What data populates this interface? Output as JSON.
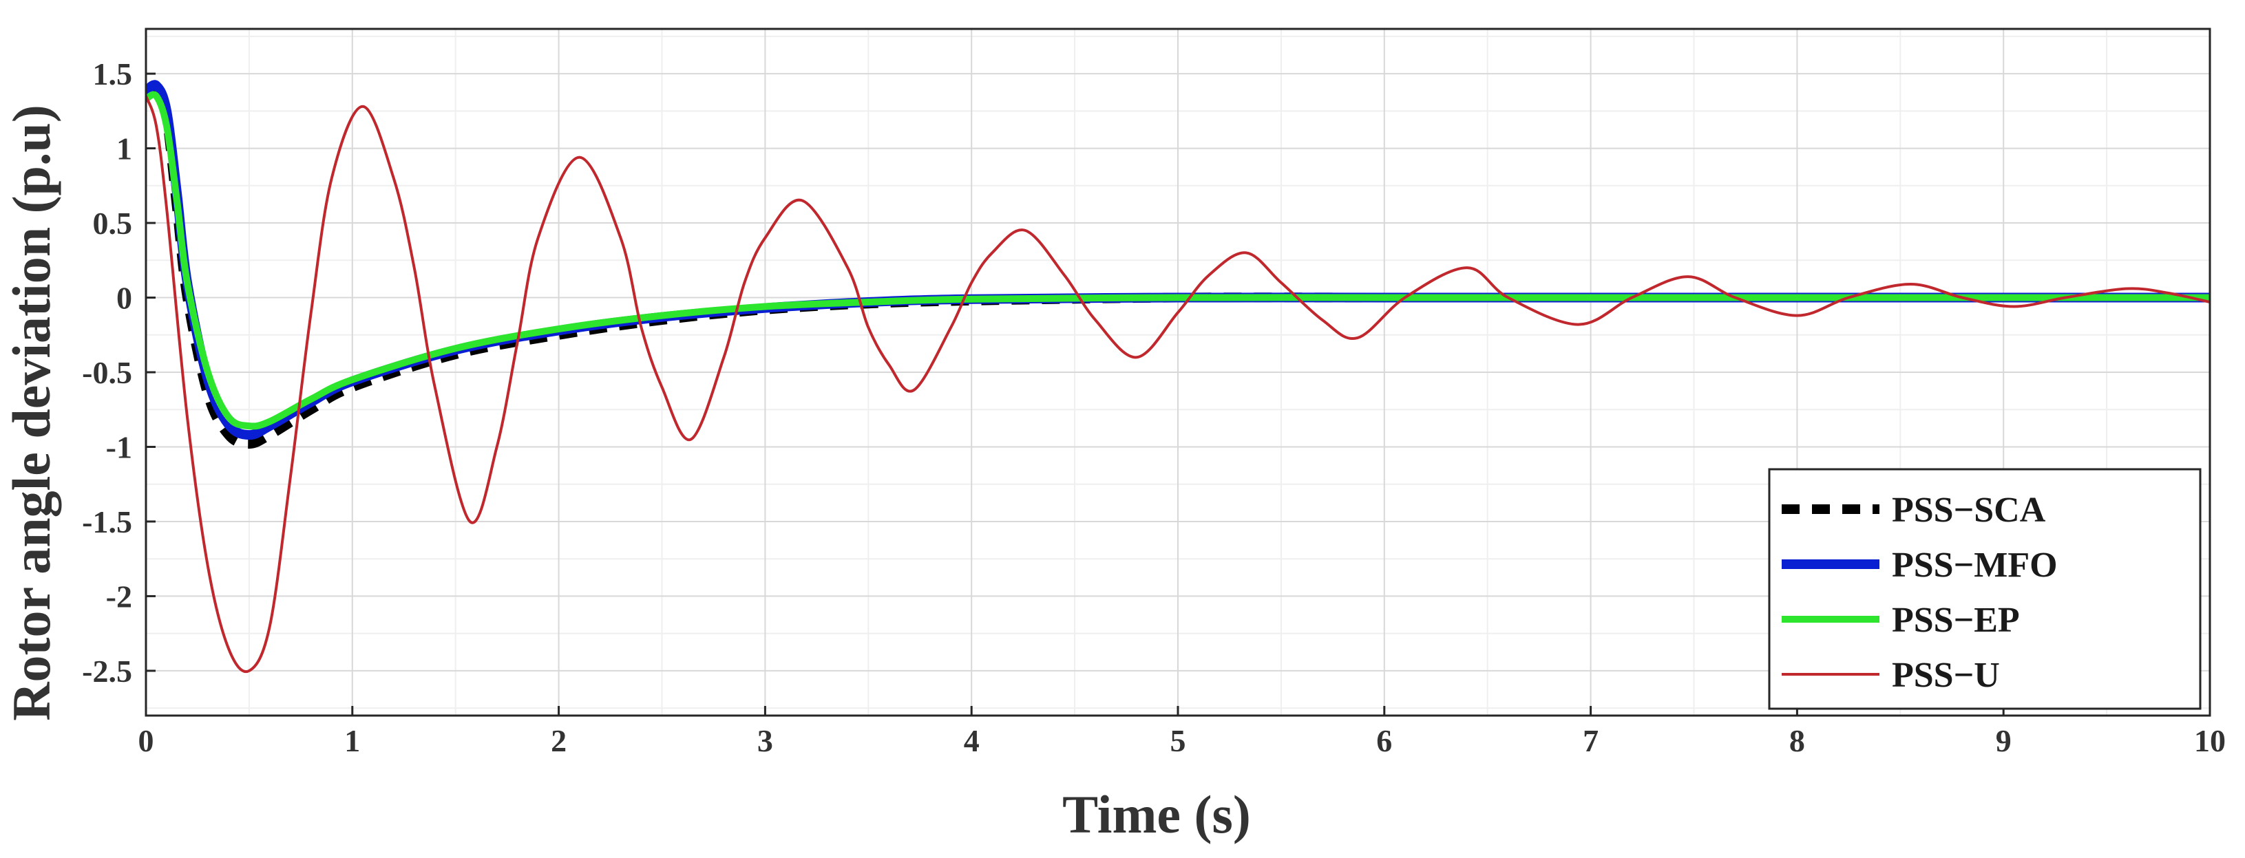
{
  "chart_data": {
    "type": "line",
    "title": "",
    "xlabel": "Time (s)",
    "ylabel": "Rotor angle deviation (p.u)",
    "xlim": [
      0,
      10
    ],
    "ylim": [
      -2.8,
      1.8
    ],
    "x_ticks": [
      0,
      1,
      2,
      3,
      4,
      5,
      6,
      7,
      8,
      9,
      10
    ],
    "x_tick_labels": [
      "0",
      "1",
      "2",
      "3",
      "4",
      "5",
      "6",
      "7",
      "8",
      "9",
      "10"
    ],
    "y_ticks": [
      -2.5,
      -2,
      -1.5,
      -1,
      -0.5,
      0,
      0.5,
      1,
      1.5
    ],
    "y_tick_labels": [
      "-2.5",
      "-2",
      "-1.5",
      "-1",
      "-0.5",
      "0",
      "0.5",
      "1",
      "1.5"
    ],
    "grid": true,
    "legend_position": "bottom-right",
    "series": [
      {
        "name": "PSS−SCA",
        "style": "dashed",
        "color": "#000000",
        "x": [
          0,
          0.05,
          0.1,
          0.15,
          0.2,
          0.3,
          0.4,
          0.5,
          0.6,
          0.8,
          1.0,
          1.5,
          2.0,
          2.5,
          3.0,
          3.5,
          4.0,
          5.0,
          6.0,
          7.0,
          8.0,
          9.0,
          10.0
        ],
        "values": [
          1.35,
          1.4,
          1.2,
          0.6,
          0.0,
          -0.65,
          -0.92,
          -0.98,
          -0.92,
          -0.75,
          -0.6,
          -0.38,
          -0.25,
          -0.15,
          -0.08,
          -0.04,
          -0.02,
          0.0,
          0.0,
          0.0,
          0.0,
          0.0,
          0.0
        ]
      },
      {
        "name": "PSS−MFO",
        "style": "solid",
        "color": "#0a1ed2",
        "x": [
          0,
          0.05,
          0.1,
          0.15,
          0.2,
          0.3,
          0.4,
          0.5,
          0.6,
          0.8,
          1.0,
          1.5,
          2.0,
          2.5,
          3.0,
          3.5,
          4.0,
          5.0,
          6.0,
          7.0,
          8.0,
          9.0,
          10.0
        ],
        "values": [
          1.38,
          1.42,
          1.25,
          0.7,
          0.1,
          -0.55,
          -0.85,
          -0.92,
          -0.86,
          -0.7,
          -0.56,
          -0.35,
          -0.22,
          -0.13,
          -0.07,
          -0.03,
          -0.01,
          0.0,
          0.0,
          0.0,
          0.0,
          0.0,
          0.0
        ]
      },
      {
        "name": "PSS−EP",
        "style": "solid",
        "color": "#2ee52e",
        "x": [
          0,
          0.05,
          0.1,
          0.15,
          0.2,
          0.3,
          0.4,
          0.5,
          0.6,
          0.8,
          1.0,
          1.5,
          2.0,
          2.5,
          3.0,
          3.5,
          4.0,
          5.0,
          6.0,
          7.0,
          8.0,
          9.0,
          10.0
        ],
        "values": [
          1.33,
          1.35,
          1.15,
          0.65,
          0.1,
          -0.5,
          -0.8,
          -0.86,
          -0.83,
          -0.68,
          -0.55,
          -0.34,
          -0.21,
          -0.12,
          -0.06,
          -0.03,
          -0.01,
          0.0,
          0.0,
          0.0,
          0.0,
          0.0,
          0.0
        ]
      },
      {
        "name": "PSS−U",
        "style": "solid",
        "color": "#c0282d",
        "x": [
          0,
          0.05,
          0.1,
          0.2,
          0.3,
          0.4,
          0.5,
          0.6,
          0.7,
          0.8,
          0.9,
          1.05,
          1.2,
          1.3,
          1.4,
          1.57,
          1.7,
          1.8,
          1.9,
          2.1,
          2.3,
          2.4,
          2.5,
          2.64,
          2.8,
          2.9,
          3.0,
          3.18,
          3.4,
          3.5,
          3.6,
          3.72,
          3.9,
          4.0,
          4.1,
          4.26,
          4.45,
          4.6,
          4.8,
          5.0,
          5.15,
          5.33,
          5.5,
          5.7,
          5.87,
          6.1,
          6.4,
          6.6,
          6.94,
          7.2,
          7.47,
          7.7,
          8.0,
          8.25,
          8.55,
          8.8,
          9.05,
          9.3,
          9.6,
          9.8,
          10.0
        ],
        "values": [
          1.35,
          1.15,
          0.6,
          -0.8,
          -1.8,
          -2.35,
          -2.5,
          -2.2,
          -1.2,
          -0.1,
          0.8,
          1.28,
          0.8,
          0.2,
          -0.6,
          -1.5,
          -1.0,
          -0.3,
          0.4,
          0.94,
          0.4,
          -0.2,
          -0.6,
          -0.95,
          -0.4,
          0.1,
          0.4,
          0.65,
          0.2,
          -0.2,
          -0.45,
          -0.62,
          -0.2,
          0.1,
          0.3,
          0.45,
          0.15,
          -0.15,
          -0.4,
          -0.1,
          0.15,
          0.3,
          0.1,
          -0.15,
          -0.27,
          0.0,
          0.2,
          0.0,
          -0.18,
          0.0,
          0.14,
          0.0,
          -0.12,
          0.0,
          0.09,
          0.0,
          -0.06,
          0.0,
          0.06,
          0.03,
          -0.03
        ]
      }
    ]
  }
}
